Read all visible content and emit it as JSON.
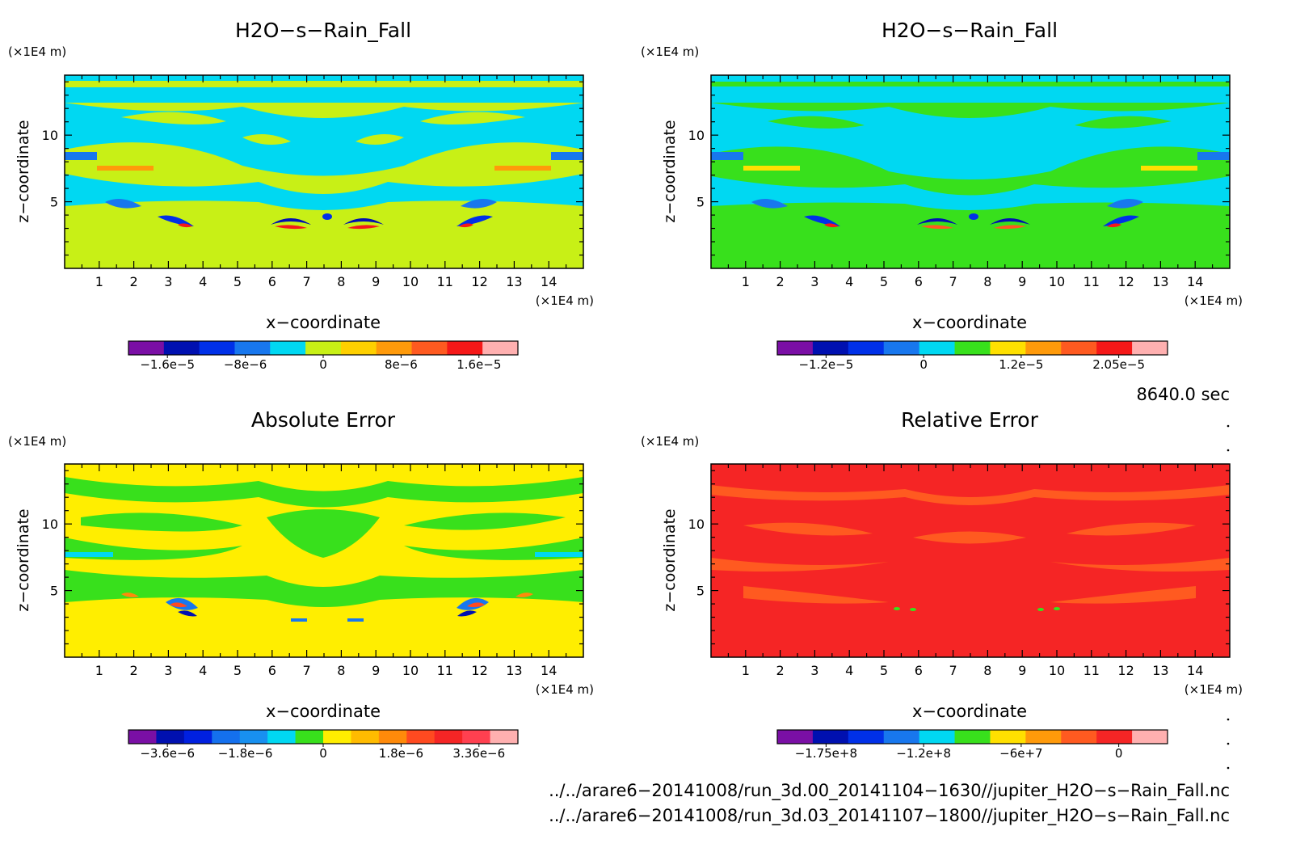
{
  "panels": [
    {
      "title": "H2O−s−Rain_Fall",
      "x_unit": "(×1E4 m)",
      "y_unit": "(×1E4 m)",
      "xlabel": "x−coordinate",
      "ylabel": "z−coordinate",
      "x_ticks": [
        "1",
        "2",
        "3",
        "4",
        "5",
        "6",
        "7",
        "8",
        "9",
        "10",
        "11",
        "12",
        "13",
        "14"
      ],
      "y_ticks": [
        "5",
        "10"
      ],
      "colorbar": {
        "colors": [
          "#7a0fa5",
          "#0010b0",
          "#0030e8",
          "#1877ee",
          "#00d8f2",
          "#c8f016",
          "#ffd000",
          "#ff9a0a",
          "#ff5a20",
          "#f51818",
          "#ffb0b0"
        ],
        "labels": [
          "−1.6e−5",
          "−8e−6",
          "0",
          "8e−6",
          "1.6e−5"
        ]
      }
    },
    {
      "title": "H2O−s−Rain_Fall",
      "x_unit": "(×1E4 m)",
      "y_unit": "(×1E4 m)",
      "xlabel": "x−coordinate",
      "ylabel": "z−coordinate",
      "x_ticks": [
        "1",
        "2",
        "3",
        "4",
        "5",
        "6",
        "7",
        "8",
        "9",
        "10",
        "11",
        "12",
        "13",
        "14"
      ],
      "y_ticks": [
        "5",
        "10"
      ],
      "colorbar": {
        "colors": [
          "#7a0fa5",
          "#0010b0",
          "#0030e8",
          "#1877ee",
          "#00d8f2",
          "#38e01c",
          "#ffe000",
          "#ff9a0a",
          "#ff5a20",
          "#f51818",
          "#ffb0b0"
        ],
        "labels": [
          "−1.2e−5",
          "0",
          "1.2e−5",
          "2.05e−5"
        ]
      }
    },
    {
      "title": "Absolute Error",
      "x_unit": "(×1E4 m)",
      "y_unit": "(×1E4 m)",
      "xlabel": "x−coordinate",
      "ylabel": "z−coordinate",
      "x_ticks": [
        "1",
        "2",
        "3",
        "4",
        "5",
        "6",
        "7",
        "8",
        "9",
        "10",
        "11",
        "12",
        "13",
        "14"
      ],
      "y_ticks": [
        "5",
        "10"
      ],
      "colorbar": {
        "colors": [
          "#7a0fa5",
          "#0010b0",
          "#0020e0",
          "#1470ee",
          "#1890f0",
          "#00d8f2",
          "#38e01c",
          "#ffee00",
          "#ffbb00",
          "#ff8a0a",
          "#ff4a20",
          "#f52525",
          "#ff4050",
          "#ffb0b0"
        ],
        "labels": [
          "−3.6e−6",
          "−1.8e−6",
          "0",
          "1.8e−6",
          "3.36e−6"
        ]
      }
    },
    {
      "title": "Relative Error",
      "x_unit": "(×1E4 m)",
      "y_unit": "(×1E4 m)",
      "xlabel": "x−coordinate",
      "ylabel": "z−coordinate",
      "x_ticks": [
        "1",
        "2",
        "3",
        "4",
        "5",
        "6",
        "7",
        "8",
        "9",
        "10",
        "11",
        "12",
        "13",
        "14"
      ],
      "y_ticks": [
        "5",
        "10"
      ],
      "colorbar": {
        "colors": [
          "#7a0fa5",
          "#0010b0",
          "#0030e8",
          "#1877ee",
          "#00d8f2",
          "#38e01c",
          "#ffe000",
          "#ff9a0a",
          "#ff5a20",
          "#f52525",
          "#ffb0b0"
        ],
        "labels": [
          "−1.75e+8",
          "−1.2e+8",
          "−6e+7",
          "0"
        ]
      }
    }
  ],
  "time_label": "8640.0 sec",
  "file_paths": [
    "../../arare6−20141008/run_3d.00_20141104−1630//jupiter_H2O−s−Rain_Fall.nc",
    "../../arare6−20141008/run_3d.03_20141107−1800//jupiter_H2O−s−Rain_Fall.nc"
  ],
  "chart_data": [
    {
      "type": "heatmap",
      "title": "H2O−s−Rain_Fall",
      "xlabel": "x−coordinate",
      "ylabel": "z−coordinate",
      "x_unit": "(×1E4 m)",
      "y_unit": "(×1E4 m)",
      "xlim": [
        0,
        15
      ],
      "ylim": [
        0,
        14.5
      ],
      "background_color": "#c8f016",
      "colorbar_labels": [
        "−1.6e−5",
        "−8e−6",
        "0",
        "8e−6",
        "1.6e−5"
      ],
      "grid": false
    },
    {
      "type": "heatmap",
      "title": "H2O−s−Rain_Fall",
      "xlabel": "x−coordinate",
      "ylabel": "z−coordinate",
      "x_unit": "(×1E4 m)",
      "y_unit": "(×1E4 m)",
      "xlim": [
        0,
        15
      ],
      "ylim": [
        0,
        14.5
      ],
      "background_color": "#38e01c",
      "colorbar_labels": [
        "−1.2e−5",
        "0",
        "1.2e−5",
        "2.05e−5"
      ],
      "grid": false
    },
    {
      "type": "heatmap",
      "title": "Absolute Error",
      "xlabel": "x−coordinate",
      "ylabel": "z−coordinate",
      "x_unit": "(×1E4 m)",
      "y_unit": "(×1E4 m)",
      "xlim": [
        0,
        15
      ],
      "ylim": [
        0,
        14.5
      ],
      "background_color": "#ffee00",
      "colorbar_labels": [
        "−3.6e−6",
        "−1.8e−6",
        "0",
        "1.8e−6",
        "3.36e−6"
      ],
      "grid": false
    },
    {
      "type": "heatmap",
      "title": "Relative Error",
      "xlabel": "x−coordinate",
      "ylabel": "z−coordinate",
      "x_unit": "(×1E4 m)",
      "y_unit": "(×1E4 m)",
      "xlim": [
        0,
        15
      ],
      "ylim": [
        0,
        14.5
      ],
      "background_color": "#f52525",
      "colorbar_labels": [
        "−1.75e+8",
        "−1.2e+8",
        "−6e+7",
        "0"
      ],
      "grid": false
    }
  ]
}
